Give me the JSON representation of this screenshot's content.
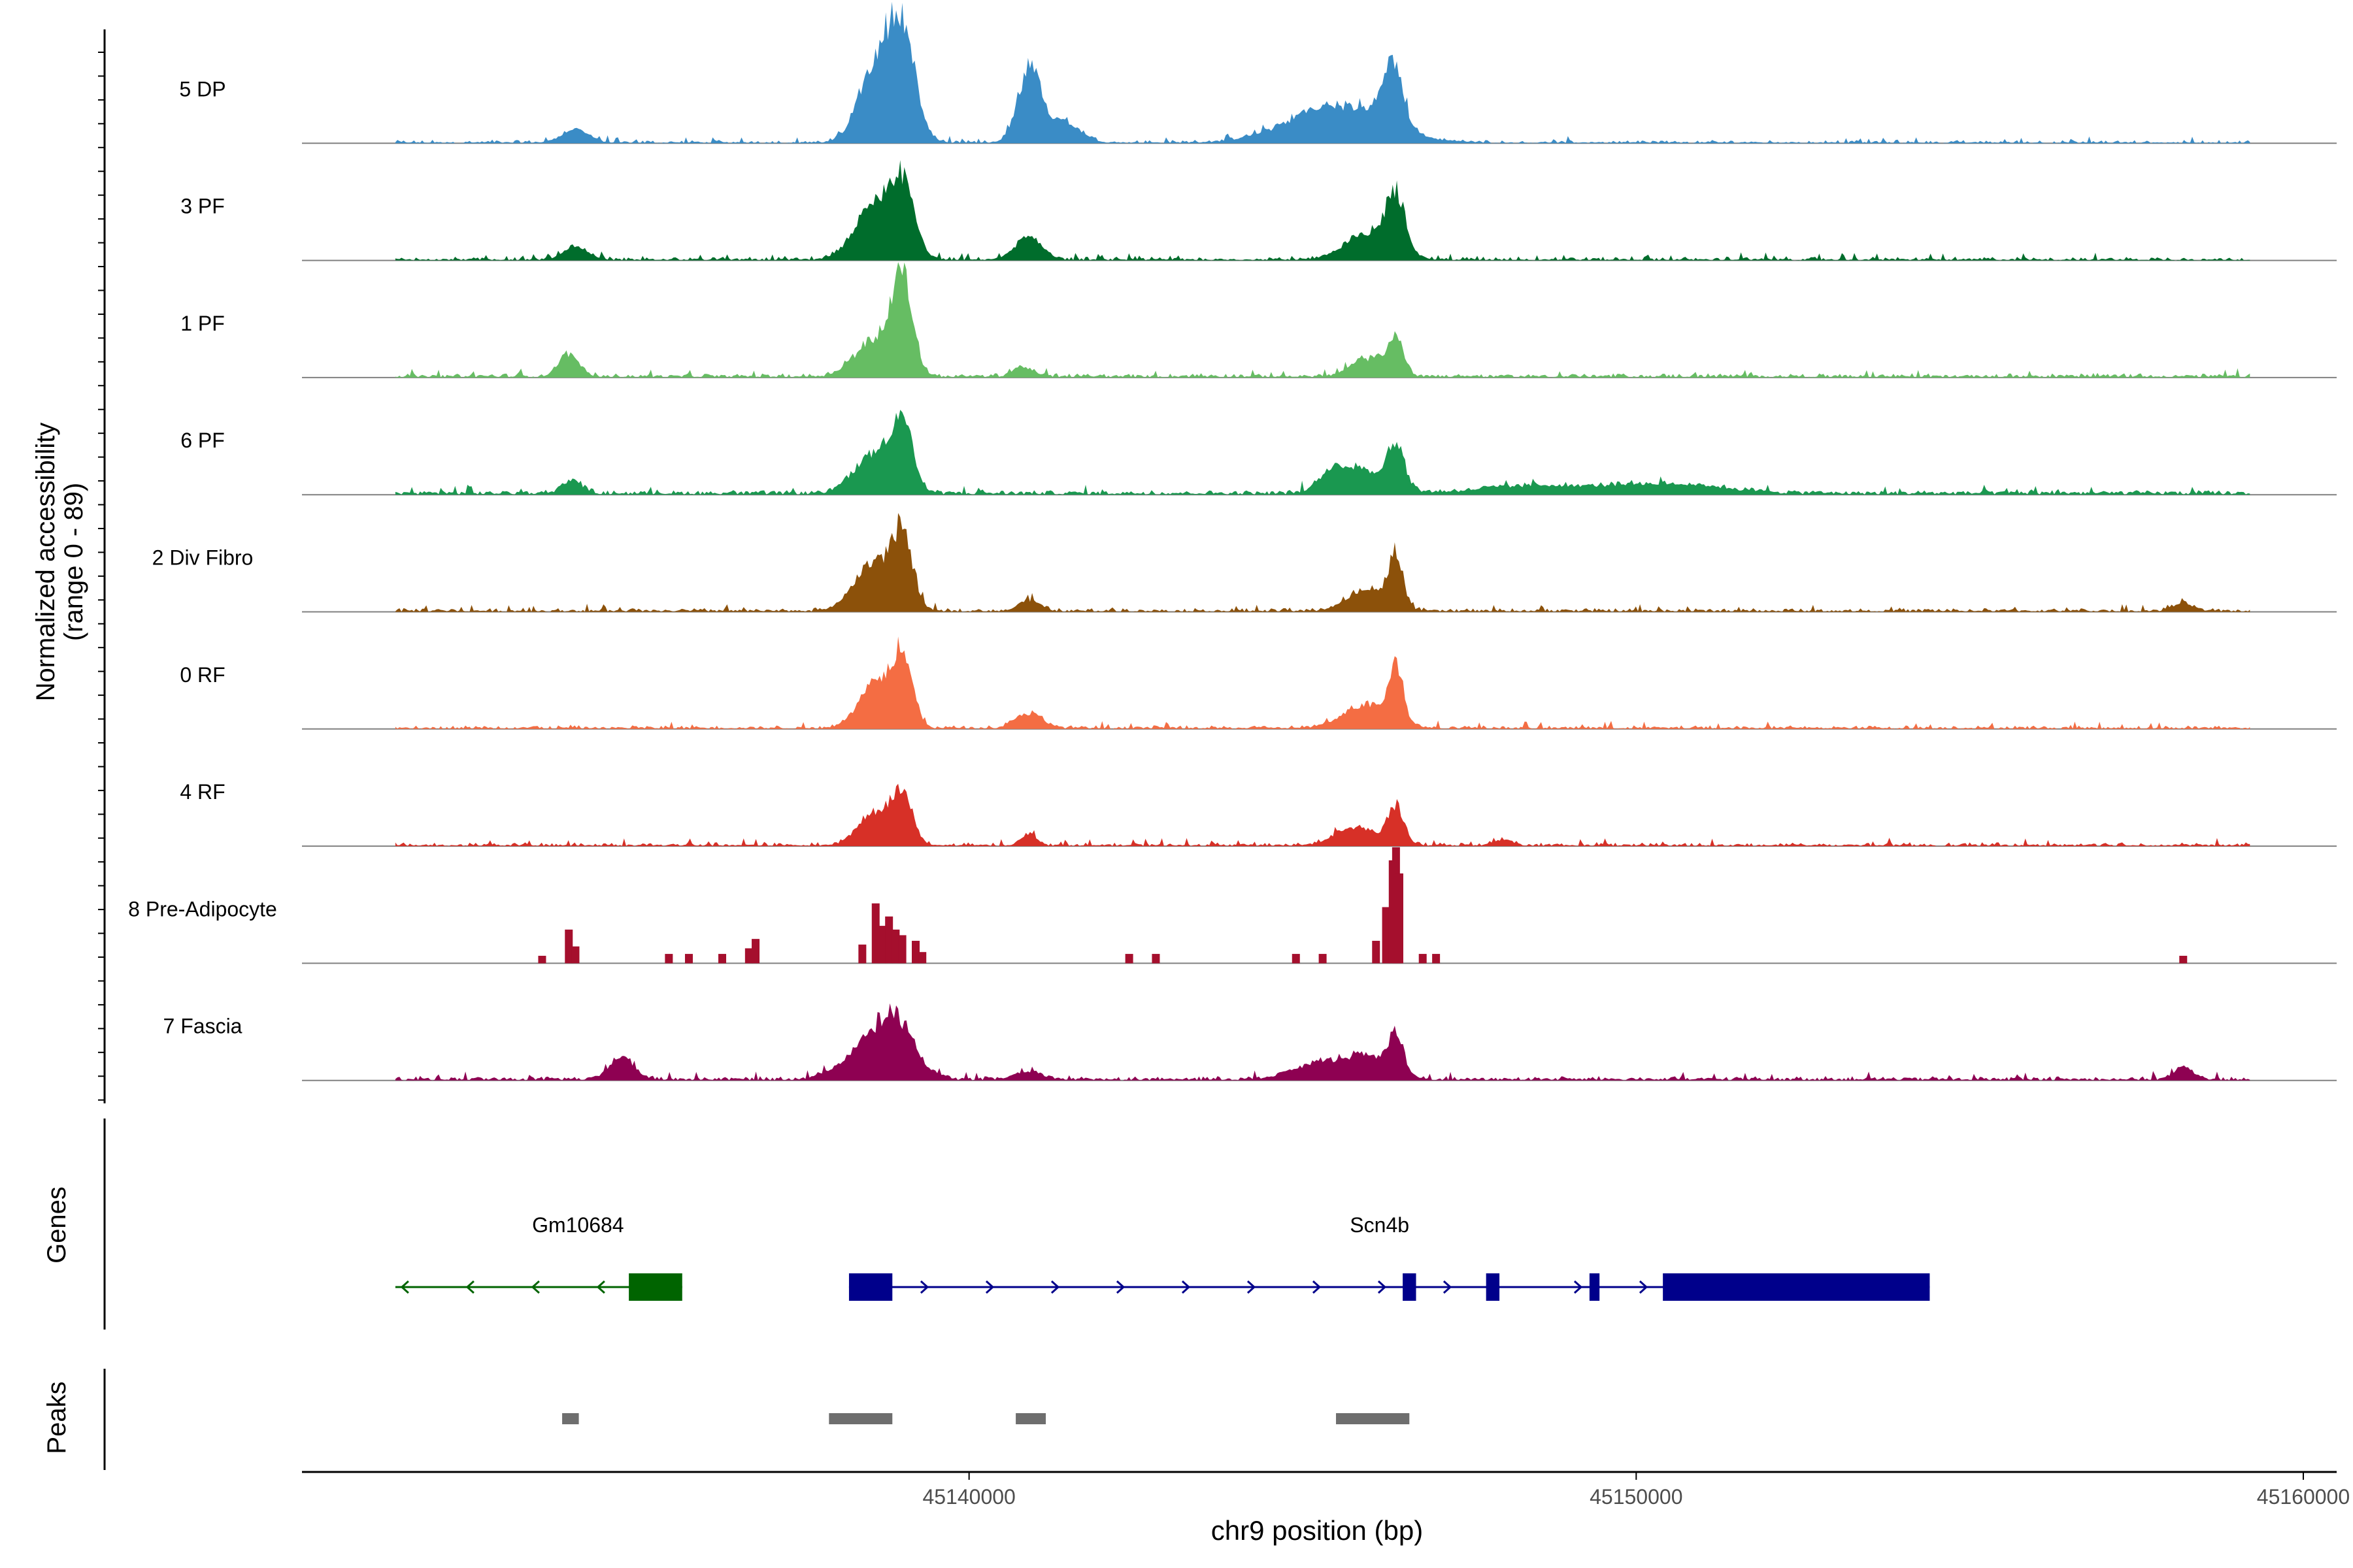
{
  "chart_data": {
    "type": "area",
    "title": "",
    "ylabel_line1": "Normalized accessibility",
    "ylabel_line2": "(range 0 - 89)",
    "yrange": [
      0,
      89
    ],
    "xlabel": "chr9 position (bp)",
    "xlim": [
      45130000,
      45160500
    ],
    "x_ticks": [
      {
        "value": 45140000,
        "label": "45140000"
      },
      {
        "value": 45150000,
        "label": "45150000"
      },
      {
        "value": 45160000,
        "label": "45160000"
      }
    ],
    "track_start": 45131400,
    "track_end": 45159200,
    "peaks_regions": [
      {
        "start": 45133900,
        "end": 45134150
      },
      {
        "start": 45137900,
        "end": 45138850
      },
      {
        "start": 45140700,
        "end": 45141150
      },
      {
        "start": 45145500,
        "end": 45146600
      }
    ],
    "series": [
      {
        "name": "5 DP",
        "color": "#3A8CC6",
        "baseline": 0.8,
        "noise": 2.2,
        "mode": "smooth",
        "peak_scale": 1.0,
        "peaks": [
          [
            45134100,
            200,
            7
          ],
          [
            45138600,
            250,
            42
          ],
          [
            45139000,
            200,
            55
          ],
          [
            45140900,
            170,
            38
          ],
          [
            45141400,
            250,
            12
          ],
          [
            45145500,
            700,
            20
          ],
          [
            45146350,
            160,
            32
          ]
        ]
      },
      {
        "name": "3 PF",
        "color": "#006D2C",
        "baseline": 1.0,
        "noise": 2.5,
        "mode": "smooth",
        "peak_scale": 1.0,
        "peaks": [
          [
            45134100,
            180,
            7
          ],
          [
            45138600,
            300,
            28
          ],
          [
            45139000,
            180,
            34
          ],
          [
            45140900,
            200,
            12
          ],
          [
            45146000,
            350,
            14
          ],
          [
            45146400,
            140,
            30
          ]
        ]
      },
      {
        "name": "1 PF",
        "color": "#66BD63",
        "baseline": 1.5,
        "noise": 2.8,
        "mode": "smooth",
        "peak_scale": 1.0,
        "peaks": [
          [
            45134000,
            150,
            12
          ],
          [
            45138600,
            300,
            20
          ],
          [
            45139000,
            150,
            49
          ],
          [
            45140800,
            150,
            5
          ],
          [
            45146000,
            250,
            10
          ],
          [
            45146400,
            120,
            18
          ]
        ]
      },
      {
        "name": "6 PF",
        "color": "#1A9850",
        "baseline": 2.0,
        "noise": 3.0,
        "mode": "smooth",
        "peak_scale": 1.0,
        "peaks": [
          [
            45134050,
            150,
            7
          ],
          [
            45138600,
            300,
            22
          ],
          [
            45139000,
            150,
            34
          ],
          [
            45145500,
            250,
            10
          ],
          [
            45146000,
            350,
            11
          ],
          [
            45146400,
            120,
            22
          ],
          [
            45148500,
            800,
            4
          ],
          [
            45150500,
            800,
            5
          ]
        ]
      },
      {
        "name": "2 Div Fibro",
        "color": "#8C510A",
        "baseline": 1.2,
        "noise": 2.5,
        "mode": "smooth",
        "peak_scale": 1.0,
        "peaks": [
          [
            45138600,
            300,
            26
          ],
          [
            45139000,
            150,
            34
          ],
          [
            45140900,
            150,
            6
          ],
          [
            45146000,
            300,
            12
          ],
          [
            45146400,
            100,
            28
          ],
          [
            45158200,
            150,
            4
          ]
        ]
      },
      {
        "name": "0 RF",
        "color": "#F46D43",
        "baseline": 1.2,
        "noise": 2.5,
        "mode": "smooth",
        "peak_scale": 1.0,
        "peaks": [
          [
            45138600,
            250,
            25
          ],
          [
            45139000,
            150,
            35
          ],
          [
            45140900,
            200,
            8
          ],
          [
            45146000,
            350,
            13
          ],
          [
            45146400,
            100,
            30
          ]
        ]
      },
      {
        "name": "4 RF",
        "color": "#D73027",
        "baseline": 1.0,
        "noise": 2.5,
        "mode": "smooth",
        "peak_scale": 1.0,
        "peaks": [
          [
            45138600,
            250,
            18
          ],
          [
            45139000,
            150,
            24
          ],
          [
            45140900,
            120,
            6
          ],
          [
            45145800,
            300,
            10
          ],
          [
            45146400,
            120,
            20
          ],
          [
            45148000,
            150,
            3
          ]
        ]
      },
      {
        "name": "8 Pre-Adipocyte",
        "color": "#A50F2D",
        "baseline": 0,
        "noise": 0,
        "mode": "sparse",
        "peak_scale": 1.0,
        "bars": [
          [
            45133600,
            4
          ],
          [
            45134000,
            18
          ],
          [
            45134100,
            9
          ],
          [
            45135500,
            5
          ],
          [
            45135800,
            5
          ],
          [
            45136300,
            5
          ],
          [
            45136700,
            8
          ],
          [
            45136800,
            13
          ],
          [
            45138400,
            10
          ],
          [
            45138600,
            32
          ],
          [
            45138700,
            20
          ],
          [
            45138800,
            25
          ],
          [
            45138900,
            18
          ],
          [
            45139000,
            15
          ],
          [
            45139200,
            12
          ],
          [
            45139300,
            6
          ],
          [
            45142400,
            5
          ],
          [
            45142800,
            5
          ],
          [
            45144900,
            5
          ],
          [
            45145300,
            5
          ],
          [
            45146100,
            12
          ],
          [
            45146250,
            30
          ],
          [
            45146350,
            55
          ],
          [
            45146400,
            62
          ],
          [
            45146450,
            48
          ],
          [
            45146800,
            5
          ],
          [
            45147000,
            5
          ],
          [
            45158200,
            4
          ]
        ]
      },
      {
        "name": "7 Fascia",
        "color": "#8E0152",
        "baseline": 1.5,
        "noise": 2.8,
        "mode": "smooth",
        "peak_scale": 1.0,
        "peaks": [
          [
            45134800,
            180,
            12
          ],
          [
            45138400,
            350,
            14
          ],
          [
            45138900,
            280,
            30
          ],
          [
            45140900,
            200,
            4
          ],
          [
            45145300,
            400,
            10
          ],
          [
            45146000,
            250,
            10
          ],
          [
            45146400,
            120,
            22
          ],
          [
            45158200,
            150,
            6
          ]
        ]
      }
    ],
    "genes": [
      {
        "name": "Gm10684",
        "strand": "-",
        "color": "#006400",
        "start": 45131400,
        "end": 45135700,
        "exons": [
          [
            45134900,
            45135700
          ]
        ]
      },
      {
        "name": "Scn4b",
        "strand": "+",
        "color": "#00008B",
        "start": 45138200,
        "end": 45154400,
        "exons": [
          [
            45138200,
            45138850
          ],
          [
            45146500,
            45146700
          ],
          [
            45147750,
            45147950
          ],
          [
            45149300,
            45149450
          ],
          [
            45150400,
            45154400
          ]
        ]
      }
    ],
    "panel_labels": {
      "genes": "Genes",
      "peaks": "Peaks"
    },
    "peak_color": "#6E6E6E"
  }
}
